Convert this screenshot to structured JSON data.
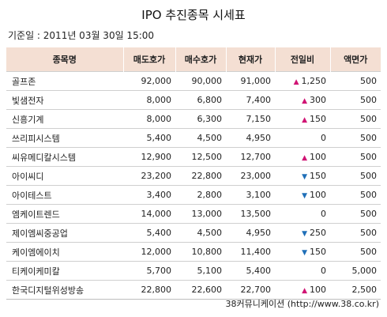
{
  "title": "IPO 추진종목 시세표",
  "basis": "기준일 : 2011년 03월 30일 15:00",
  "columns": [
    "종목명",
    "매도호가",
    "매수호가",
    "현재가",
    "전일비",
    "액면가"
  ],
  "rows": [
    {
      "name": "골프존",
      "ask": "92,000",
      "bid": "90,000",
      "price": "91,000",
      "dir": "up",
      "change": "1,250",
      "par": "500"
    },
    {
      "name": "빛샘전자",
      "ask": "8,000",
      "bid": "6,800",
      "price": "7,400",
      "dir": "up",
      "change": "300",
      "par": "500"
    },
    {
      "name": "신흥기계",
      "ask": "8,000",
      "bid": "6,300",
      "price": "7,150",
      "dir": "up",
      "change": "150",
      "par": "500"
    },
    {
      "name": "쓰리피시스템",
      "ask": "5,400",
      "bid": "4,500",
      "price": "4,950",
      "dir": "none",
      "change": "0",
      "par": "500"
    },
    {
      "name": "씨유메디칼시스템",
      "ask": "12,900",
      "bid": "12,500",
      "price": "12,700",
      "dir": "up",
      "change": "100",
      "par": "500"
    },
    {
      "name": "아이씨디",
      "ask": "23,200",
      "bid": "22,800",
      "price": "23,000",
      "dir": "down",
      "change": "150",
      "par": "500"
    },
    {
      "name": "아이테스트",
      "ask": "3,400",
      "bid": "2,800",
      "price": "3,100",
      "dir": "down",
      "change": "100",
      "par": "500"
    },
    {
      "name": "엠케이트렌드",
      "ask": "14,000",
      "bid": "13,000",
      "price": "13,500",
      "dir": "none",
      "change": "0",
      "par": "500"
    },
    {
      "name": "제이엠씨중공업",
      "ask": "5,400",
      "bid": "4,500",
      "price": "4,950",
      "dir": "down",
      "change": "250",
      "par": "500"
    },
    {
      "name": "케이엠에이치",
      "ask": "12,000",
      "bid": "10,800",
      "price": "11,400",
      "dir": "down",
      "change": "150",
      "par": "500"
    },
    {
      "name": "티케이케미칼",
      "ask": "5,700",
      "bid": "5,100",
      "price": "5,400",
      "dir": "none",
      "change": "0",
      "par": "5,000"
    },
    {
      "name": "한국디지털위성방송",
      "ask": "22,800",
      "bid": "22,600",
      "price": "22,700",
      "dir": "up",
      "change": "100",
      "par": "2,500"
    }
  ],
  "source": "38커뮤니케이션 (http://www.38.co.kr)"
}
